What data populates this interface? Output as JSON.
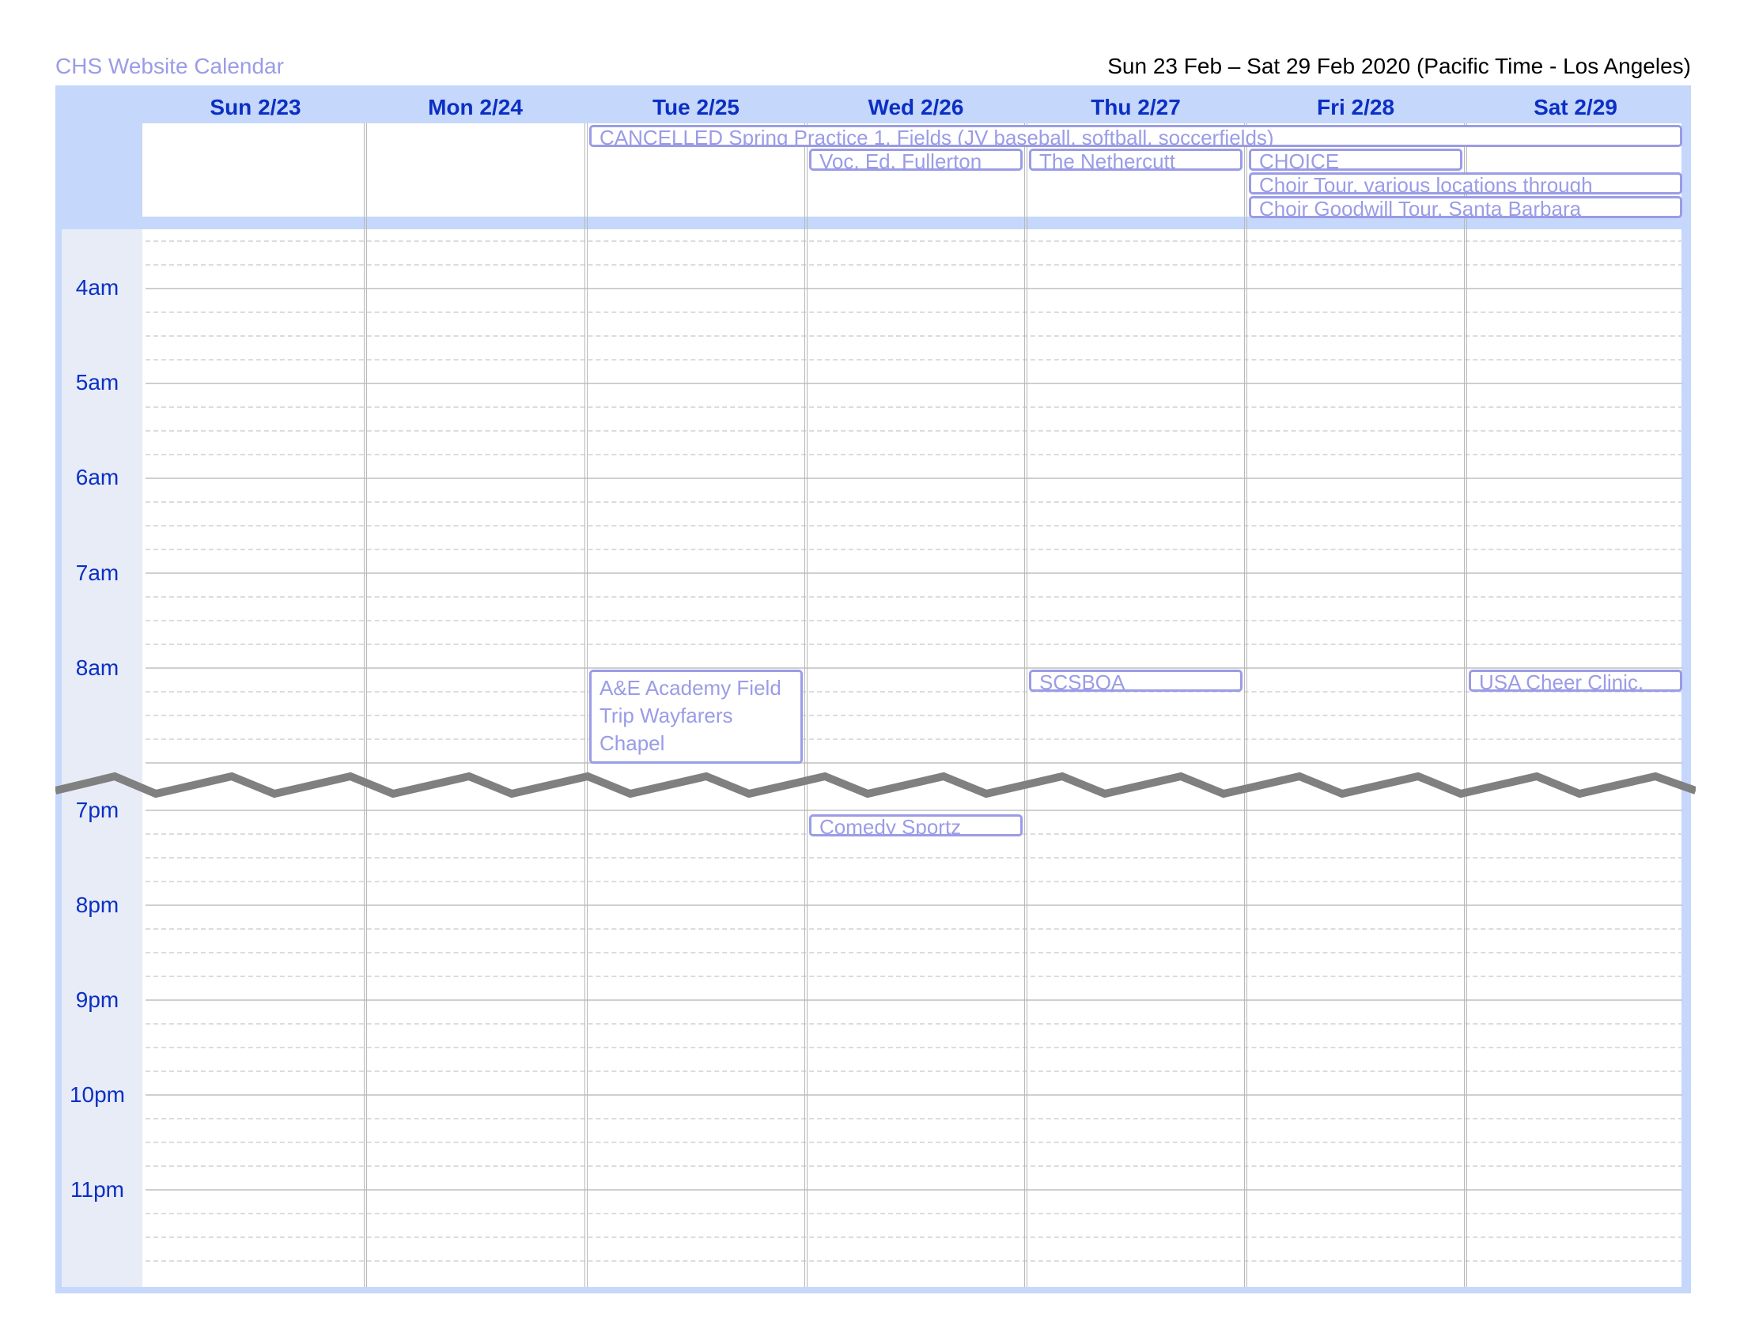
{
  "header": {
    "calendar_name": "CHS Website Calendar",
    "date_range": "Sun 23 Feb – Sat 29 Feb 2020 (Pacific Time - Los Angeles)"
  },
  "days": [
    {
      "label": "Sun 2/23"
    },
    {
      "label": "Mon 2/24"
    },
    {
      "label": "Tue 2/25"
    },
    {
      "label": "Wed 2/26"
    },
    {
      "label": "Thu 2/27"
    },
    {
      "label": "Fri 2/28"
    },
    {
      "label": "Sat 2/29"
    }
  ],
  "time_labels": [
    "4am",
    "5am",
    "6am",
    "7am",
    "8am",
    "7pm",
    "8pm",
    "9pm",
    "10pm",
    "11pm"
  ],
  "all_day_events": [
    {
      "title": "CANCELLED Spring Practice 1, Fields (JV baseball, softball, soccerfields)",
      "start_day": "Tue 2/25",
      "end_day": "Sat 2/29"
    },
    {
      "title": "Voc. Ed. Fullerton",
      "start_day": "Wed 2/26",
      "end_day": "Wed 2/26"
    },
    {
      "title": "The Nethercutt",
      "start_day": "Thu 2/27",
      "end_day": "Thu 2/27"
    },
    {
      "title": "CHOICE",
      "start_day": "Fri 2/28",
      "end_day": "Fri 2/28"
    },
    {
      "title": "Choir Tour, various locations through",
      "start_day": "Fri 2/28",
      "end_day": "Sat 2/29"
    },
    {
      "title": "Choir Goodwill Tour, Santa Barbara",
      "start_day": "Fri 2/28",
      "end_day": "Sat 2/29"
    }
  ],
  "timed_events": [
    {
      "title": "A&E Academy Field Trip Wayfarers Chapel",
      "day": "Tue 2/25"
    },
    {
      "title": "SCSBOA",
      "day": "Thu 2/27"
    },
    {
      "title": "USA Cheer Clinic,",
      "day": "Sat 2/29"
    },
    {
      "title": "Comedy Sportz",
      "day": "Wed 2/26"
    }
  ],
  "colors": {
    "header_band": "#c5d7fb",
    "gutter": "#e7ecf7",
    "day_text": "#0b2fc4",
    "event_text": "#9a9ce6",
    "time_break": "#808080"
  }
}
